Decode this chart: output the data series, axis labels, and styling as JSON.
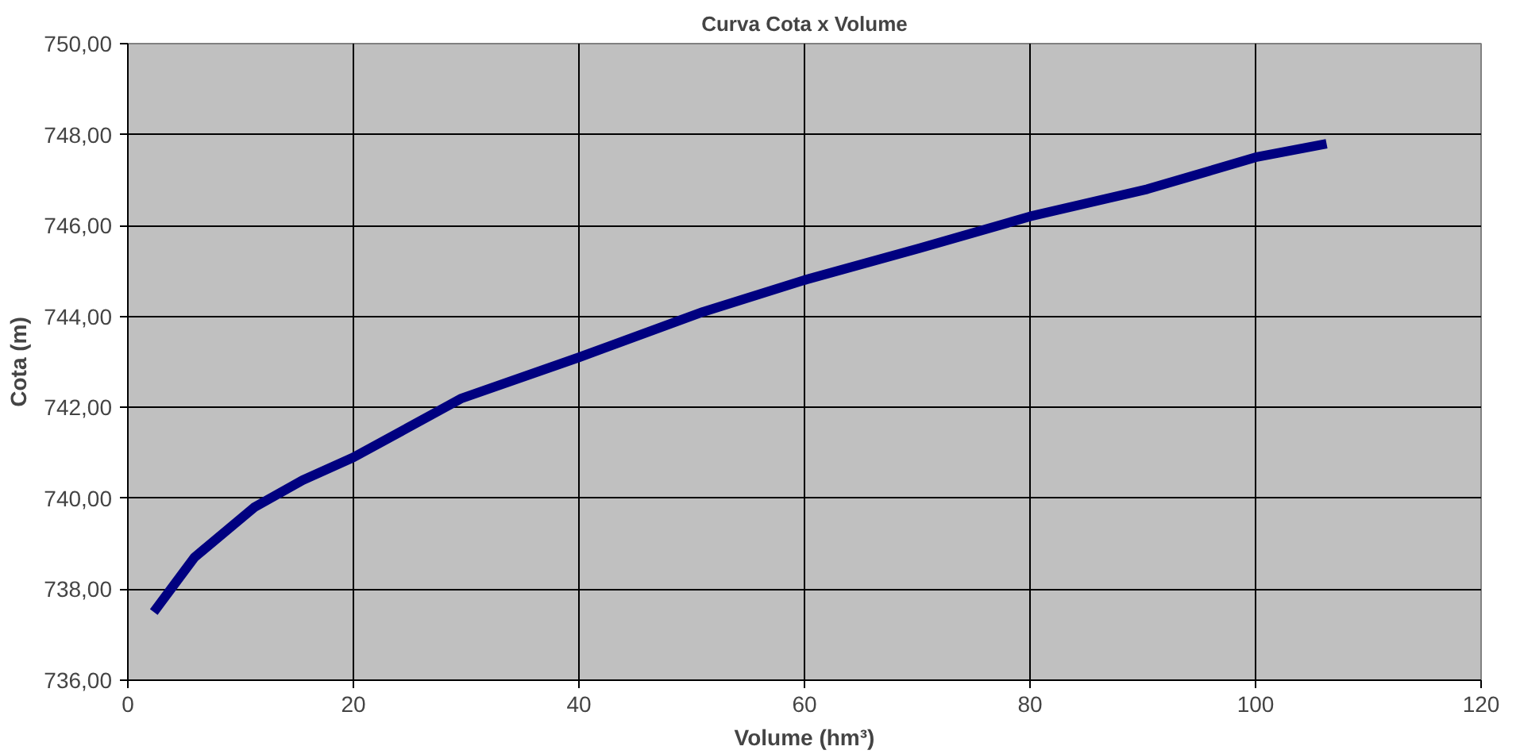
{
  "chart_data": {
    "type": "line",
    "title": "Curva Cota x Volume",
    "xlabel": "Volume (hm³)",
    "ylabel": "Cota (m)",
    "xlim": [
      0,
      120
    ],
    "xticks": [
      0,
      20,
      40,
      60,
      80,
      100,
      120
    ],
    "ylim": [
      736,
      750
    ],
    "yticks": [
      {
        "value": 736,
        "label": "736,00"
      },
      {
        "value": 738,
        "label": "738,00"
      },
      {
        "value": 740,
        "label": "740,00"
      },
      {
        "value": 742,
        "label": "742,00"
      },
      {
        "value": 744,
        "label": "744,00"
      },
      {
        "value": 746,
        "label": "746,00"
      },
      {
        "value": 748,
        "label": "748,00"
      },
      {
        "value": 750,
        "label": "750,00"
      }
    ],
    "grid": true,
    "marker": "none",
    "line_style": "solid",
    "series": [
      {
        "color": "#000080",
        "x": [
          2.3,
          5.9,
          11.2,
          15.5,
          20,
          29.6,
          40,
          51,
          60,
          70.2,
          80,
          90.4,
          100,
          106.3
        ],
        "values": [
          737.5,
          738.7,
          739.8,
          740.4,
          740.9,
          742.2,
          743.1,
          744.1,
          744.8,
          745.5,
          746.2,
          746.8,
          747.5,
          747.8
        ]
      }
    ]
  }
}
